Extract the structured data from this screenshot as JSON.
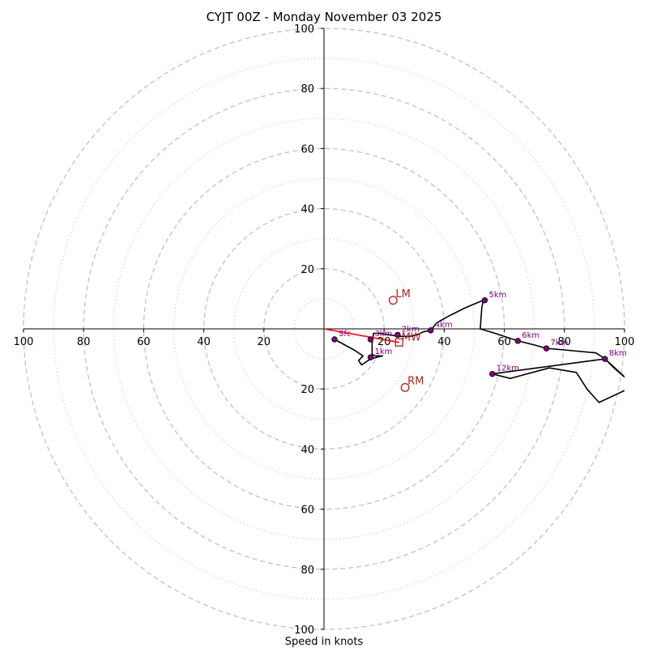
{
  "chart_data": {
    "type": "hodograph",
    "title": "CYJT 00Z - Monday November 03 2025",
    "xlabel": "Speed in knots",
    "range": [
      -100,
      100
    ],
    "ticks": [
      20,
      40,
      60,
      80,
      100
    ],
    "ring_major": [
      20,
      40,
      60,
      80,
      100
    ],
    "ring_minor": [
      10,
      30,
      50,
      70,
      90
    ],
    "colors": {
      "trace": "#000000",
      "heights": "#800080",
      "motion": "#b22222",
      "shear": "#ff0000",
      "ring_major": "#bdbdbd",
      "ring_minor": "#d0d0d0"
    },
    "trace": [
      [
        3.5,
        -3.5
      ],
      [
        10,
        -7
      ],
      [
        13,
        -9
      ],
      [
        11.5,
        -10.5
      ],
      [
        12.5,
        -12
      ],
      [
        15.5,
        -10
      ],
      [
        19.5,
        -9
      ],
      [
        17,
        -9
      ],
      [
        16,
        -8.5
      ],
      [
        16,
        -4.5
      ],
      [
        16.5,
        -1.5
      ],
      [
        18.5,
        -1.5
      ],
      [
        22,
        -2
      ],
      [
        24.5,
        -2.5
      ],
      [
        26,
        -2.5
      ],
      [
        28.5,
        -2.5
      ],
      [
        31,
        -2
      ],
      [
        33,
        -1
      ],
      [
        35.5,
        -0.5
      ],
      [
        37.5,
        2
      ],
      [
        41,
        4
      ],
      [
        44,
        5.5
      ],
      [
        47,
        7
      ],
      [
        50.5,
        8.5
      ],
      [
        53,
        9.5
      ],
      [
        52.5,
        7
      ],
      [
        52,
        0
      ],
      [
        57,
        -1.5
      ],
      [
        64.5,
        -4
      ],
      [
        70.5,
        -5.5
      ],
      [
        74,
        -6.5
      ],
      [
        80,
        -7
      ],
      [
        90.5,
        -8
      ],
      [
        93.5,
        -10
      ],
      [
        96.5,
        -13
      ],
      [
        100,
        -16
      ],
      [
        99.5,
        -15.5
      ],
      [
        93.5,
        -10
      ],
      [
        56,
        -15
      ],
      [
        62,
        -16.5
      ],
      [
        75,
        -13
      ],
      [
        84,
        -14.5
      ],
      [
        87.5,
        -20
      ],
      [
        91.5,
        -24.5
      ],
      [
        100,
        -20.5
      ]
    ],
    "height_points": [
      {
        "label": "Sfc",
        "u": 3.5,
        "v": -3.5
      },
      {
        "label": "1km",
        "u": 15.5,
        "v": -9.5
      },
      {
        "label": "2km",
        "u": 24.5,
        "v": -2
      },
      {
        "label": "3km",
        "u": 15.5,
        "v": -3.5
      },
      {
        "label": "4km",
        "u": 35.5,
        "v": -0.5
      },
      {
        "label": "5km",
        "u": 53.5,
        "v": 9.5
      },
      {
        "label": "6km",
        "u": 64.5,
        "v": -4
      },
      {
        "label": "7km",
        "u": 74,
        "v": -6.5
      },
      {
        "label": "8km",
        "u": 93.5,
        "v": -10
      },
      {
        "label": "12km",
        "u": 56,
        "v": -15
      }
    ],
    "storm_motion": [
      {
        "label": "LM",
        "u": 23,
        "v": 9.5,
        "marker": "circle"
      },
      {
        "label": "RM",
        "u": 27,
        "v": -19.5,
        "marker": "circle"
      },
      {
        "label": "MW",
        "u": 25,
        "v": -4.5,
        "marker": "square"
      }
    ],
    "shear_vector": {
      "from": [
        0,
        0
      ],
      "to": [
        25,
        -4.5
      ]
    }
  }
}
